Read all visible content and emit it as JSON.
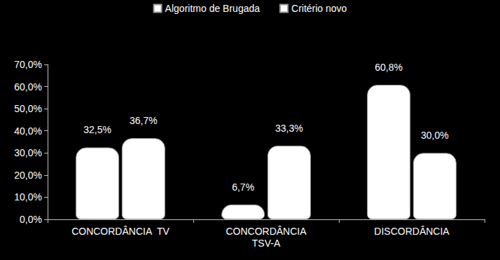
{
  "chart_data": {
    "type": "bar",
    "categories": [
      "CONCORDÂNCIA  TV",
      "CONCORDÂNCIA\nTSV-A",
      "DISCORDÂNCIA"
    ],
    "series": [
      {
        "name": "Algoritmo de Brugada",
        "color": "#ffffff",
        "values": [
          32.5,
          6.7,
          60.8
        ],
        "value_labels": [
          "32,5%",
          "6,7%",
          "60,8%"
        ]
      },
      {
        "name": "Critério novo",
        "color": "#ffffff",
        "values": [
          36.7,
          33.3,
          30.0
        ],
        "value_labels": [
          "36,7%",
          "33,3%",
          "30,0%"
        ]
      }
    ],
    "ylim": [
      0,
      70
    ],
    "yticks": [
      {
        "value": 0,
        "label": "0,0%"
      },
      {
        "value": 10,
        "label": "10,0%"
      },
      {
        "value": 20,
        "label": "20,0%"
      },
      {
        "value": 30,
        "label": "30,0%"
      },
      {
        "value": 40,
        "label": "40,0%"
      },
      {
        "value": 50,
        "label": "50,0%"
      },
      {
        "value": 60,
        "label": "60,0%"
      },
      {
        "value": 70,
        "label": "70,0%"
      }
    ],
    "grid": false,
    "legend": "top",
    "data_labels": true
  }
}
